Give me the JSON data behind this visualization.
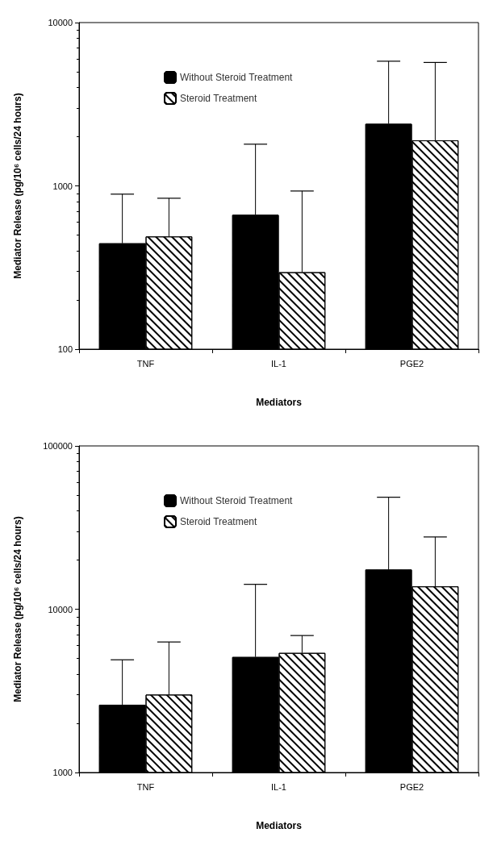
{
  "chart_data": [
    {
      "type": "bar",
      "log": "y",
      "xlabel": "Mediators",
      "ylabel": "Mediator Release (pg/10⁶ cells/24 hours)",
      "categories": [
        "TNF",
        "IL-1",
        "PGE2"
      ],
      "ylim": [
        100,
        10000
      ],
      "yticks": [
        100,
        1000,
        10000
      ],
      "grid": false,
      "legend": "top left",
      "series": [
        {
          "name": "Without Steroid Treatment",
          "color": "#000000",
          "values": [
            445,
            665,
            2400
          ],
          "errors": [
            [
              445,
              890
            ],
            [
              665,
              1800
            ],
            [
              2400,
              5800
            ]
          ]
        },
        {
          "name": "Steroid Treatment",
          "color": "#ffffff",
          "values": [
            490,
            296,
            1900
          ],
          "errors": [
            [
              490,
              840
            ],
            [
              296,
              930
            ],
            [
              1900,
              5700
            ]
          ]
        }
      ]
    },
    {
      "type": "bar",
      "log": "y",
      "xlabel": "Mediators",
      "ylabel": "Mediator Release (pg/10⁶ cells/24 hours)",
      "categories": [
        "TNF",
        "IL-1",
        "PGE2"
      ],
      "ylim": [
        1000,
        100000
      ],
      "yticks": [
        1000,
        10000,
        100000
      ],
      "grid": false,
      "legend": "top left",
      "series": [
        {
          "name": "Without Steroid Treatment",
          "color": "#000000",
          "values": [
            2600,
            5100,
            17500
          ],
          "errors": [
            [
              2600,
              4900
            ],
            [
              5100,
              14200
            ],
            [
              17500,
              48500
            ]
          ]
        },
        {
          "name": "Steroid Treatment",
          "color": "#ffffff",
          "values": [
            3000,
            5400,
            13800
          ],
          "errors": [
            [
              3000,
              6300
            ],
            [
              5400,
              6900
            ],
            [
              13800,
              27700
            ]
          ]
        }
      ]
    }
  ]
}
